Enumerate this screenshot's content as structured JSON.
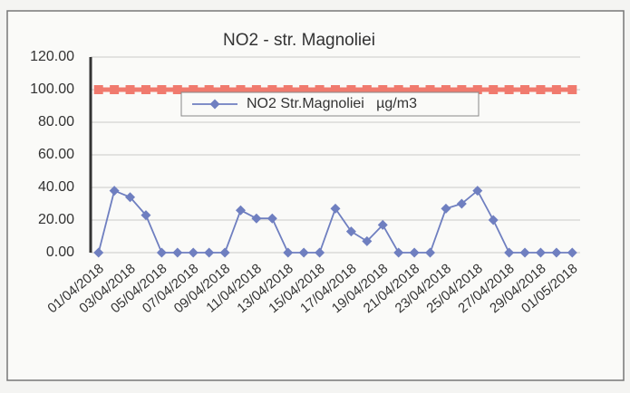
{
  "chart_data": {
    "type": "line",
    "title": "NO2 - str. Magnoliei",
    "categories": [
      "01/04/2018",
      null,
      "03/04/2018",
      null,
      "05/04/2018",
      null,
      "07/04/2018",
      null,
      "09/04/2018",
      null,
      "11/04/2018",
      null,
      "13/04/2018",
      null,
      "15/04/2018",
      null,
      "17/04/2018",
      null,
      "19/04/2018",
      null,
      "21/04/2018",
      null,
      "23/04/2018",
      null,
      "25/04/2018",
      null,
      "27/04/2018",
      null,
      "29/04/2018",
      null,
      "01/05/2018"
    ],
    "series": [
      {
        "color": "#f07a6e",
        "values": [
          100,
          100,
          100,
          100,
          100,
          100,
          100,
          100,
          100,
          100,
          100,
          100,
          100,
          100,
          100,
          100,
          100,
          100,
          100,
          100,
          100,
          100,
          100,
          100,
          100,
          100,
          100,
          100,
          100,
          100,
          100
        ]
      },
      {
        "name": "NO2 Str.Magnoliei   µg/m3",
        "color": "#6f7fc0",
        "values": [
          0,
          38,
          34,
          23,
          0,
          0,
          0,
          0,
          0,
          26,
          21,
          21,
          0,
          0,
          0,
          27,
          13,
          7,
          17,
          0,
          0,
          0,
          27,
          30,
          38,
          20,
          0,
          0,
          0,
          0,
          0
        ]
      }
    ],
    "ylim": [
      0,
      120
    ],
    "yticks": [
      {
        "value": 0,
        "label": "0.00"
      },
      {
        "value": 20,
        "label": "20.00"
      },
      {
        "value": 40,
        "label": "40.00"
      },
      {
        "value": 60,
        "label": "60.00"
      },
      {
        "value": 80,
        "label": "80.00"
      },
      {
        "value": 100,
        "label": "100.00"
      },
      {
        "value": 120,
        "label": "120.00"
      }
    ],
    "grid": true
  }
}
